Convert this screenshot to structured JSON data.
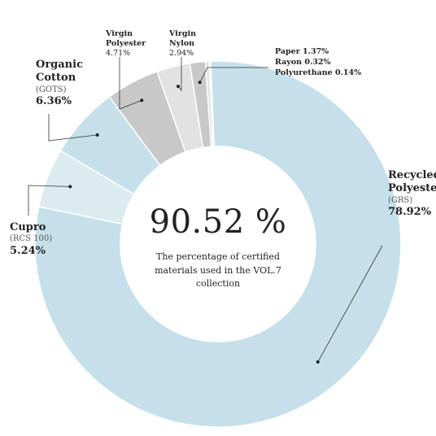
{
  "chart_data": {
    "type": "pie",
    "hole": true,
    "center_value": "90.52 %",
    "center_caption": "The percentage of certified materials used in the VOL.7 collection",
    "slices": [
      {
        "name": "Recycled\nPolyester",
        "standard": "(GRS)",
        "value": 78.92,
        "value_label": "78.92%",
        "color": "#c5e0ea"
      },
      {
        "name": "Cupro",
        "standard": "(RCS 100)",
        "value": 5.24,
        "value_label": "5.24%",
        "color": "#dbebf0"
      },
      {
        "name": "Organic\nCotton",
        "standard": "(GOTS)",
        "value": 6.36,
        "value_label": "6.36%",
        "color": "#c5e0ea"
      },
      {
        "name": "Virgin\nPolyester",
        "value": 4.71,
        "value_label": "4.71%",
        "color": "#c8c8c8"
      },
      {
        "name": "Virgin\nNylon",
        "value": 2.94,
        "value_label": "2.94%",
        "color": "#e2e2e2"
      },
      {
        "name": "Paper",
        "value": 1.37,
        "value_label": "1.37%",
        "color": "#c8c8c8"
      },
      {
        "name": "Rayon",
        "value": 0.32,
        "value_label": "0.32%",
        "color": "#e2e2e2"
      },
      {
        "name": "Polyurethane",
        "value": 0.14,
        "value_label": "0.14%",
        "color": "#c8c8c8"
      }
    ],
    "small_items_text": [
      "Paper 1.37%",
      "Rayon  0.32%",
      "Polyurethane  0.14%"
    ]
  }
}
